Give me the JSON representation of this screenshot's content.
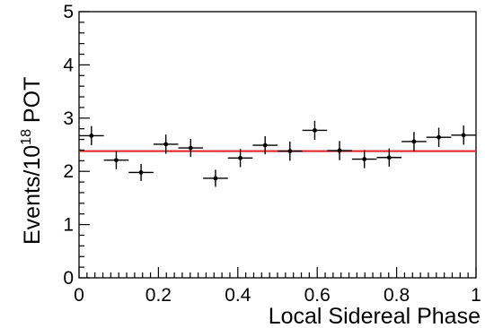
{
  "chart_data": {
    "type": "scatter",
    "xlabel": "Local Sidereal Phase",
    "ylabel_main": "Events/10",
    "ylabel_exponent": "18",
    "ylabel_unit": " POT",
    "xlim": [
      0,
      1
    ],
    "ylim": [
      0,
      5
    ],
    "x_ticks": [
      0,
      0.2,
      0.4,
      0.6,
      0.8,
      1
    ],
    "x_tick_labels": [
      "0",
      "0.2",
      "0.4",
      "0.6",
      "0.8",
      "1"
    ],
    "y_ticks": [
      0,
      1,
      2,
      3,
      4,
      5
    ],
    "y_tick_labels": [
      "0",
      "1",
      "2",
      "3",
      "4",
      "5"
    ],
    "grid": false,
    "series": [
      {
        "x": [
          0.03125,
          0.09375,
          0.15625,
          0.21875,
          0.28125,
          0.34375,
          0.40625,
          0.46875,
          0.53125,
          0.59375,
          0.65625,
          0.71875,
          0.78125,
          0.84375,
          0.90625,
          0.96875
        ],
        "y": [
          2.67,
          2.21,
          1.98,
          2.51,
          2.44,
          1.87,
          2.25,
          2.49,
          2.38,
          2.77,
          2.39,
          2.23,
          2.26,
          2.56,
          2.64,
          2.68
        ],
        "x_err": 0.03125,
        "y_err": [
          0.18,
          0.17,
          0.16,
          0.18,
          0.17,
          0.16,
          0.17,
          0.17,
          0.18,
          0.18,
          0.18,
          0.17,
          0.17,
          0.18,
          0.18,
          0.18
        ],
        "color": "#000000"
      }
    ],
    "fit_line": {
      "y": 2.38,
      "color": "#e0211f"
    }
  }
}
